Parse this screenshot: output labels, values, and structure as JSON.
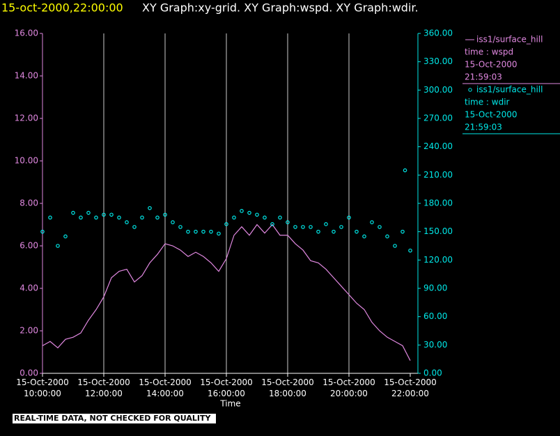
{
  "chart_data": {
    "type": "xy",
    "title": "15-oct-2000,22:00:00",
    "subtitle": "XY Graph:xy-grid.  XY Graph:wspd.  XY Graph:wdir.",
    "xlabel": "Time",
    "footer": "REAL-TIME DATA, NOT CHECKED FOR QUALITY",
    "grid": true,
    "xlim": [
      10,
      22
    ],
    "xticks": [
      {
        "value": 10,
        "label": "15-Oct-2000 10:00:00"
      },
      {
        "value": 12,
        "label": "15-Oct-2000 12:00:00"
      },
      {
        "value": 14,
        "label": "15-Oct-2000 14:00:00"
      },
      {
        "value": 16,
        "label": "15-Oct-2000 16:00:00"
      },
      {
        "value": 18,
        "label": "15-Oct-2000 18:00:00"
      },
      {
        "value": 20,
        "label": "15-Oct-2000 20:00:00"
      },
      {
        "value": 22,
        "label": "15-Oct-2000 22:00:00"
      }
    ],
    "ylim": [
      0,
      16
    ],
    "yticks": [
      {
        "value": 0,
        "label": "0.00"
      },
      {
        "value": 2,
        "label": "2.00"
      },
      {
        "value": 4,
        "label": "4.00"
      },
      {
        "value": 6,
        "label": "6.00"
      },
      {
        "value": 8,
        "label": "8.00"
      },
      {
        "value": 10,
        "label": "10.00"
      },
      {
        "value": 12,
        "label": "12.00"
      },
      {
        "value": 14,
        "label": "14.00"
      },
      {
        "value": 16,
        "label": "16.00"
      }
    ],
    "y2lim": [
      0,
      360
    ],
    "y2ticks": [
      {
        "value": 0,
        "label": "0.00"
      },
      {
        "value": 30,
        "label": "30.00"
      },
      {
        "value": 60,
        "label": "60.00"
      },
      {
        "value": 90,
        "label": "90.00"
      },
      {
        "value": 120,
        "label": "120.00"
      },
      {
        "value": 150,
        "label": "150.00"
      },
      {
        "value": 180,
        "label": "180.00"
      },
      {
        "value": 210,
        "label": "210.00"
      },
      {
        "value": 240,
        "label": "240.00"
      },
      {
        "value": 270,
        "label": "270.00"
      },
      {
        "value": 300,
        "label": "300.00"
      },
      {
        "value": 330,
        "label": "330.00"
      },
      {
        "value": 360,
        "label": "360.00"
      }
    ],
    "series": [
      {
        "name": "iss1/surface_hill",
        "legend_lines": [
          "time : wspd",
          "15-Oct-2000",
          "21:59:03"
        ],
        "color": "#e088e0",
        "kind": "line",
        "axis": "y",
        "x": [
          10,
          10.25,
          10.5,
          10.75,
          11,
          11.25,
          11.5,
          11.75,
          12,
          12.25,
          12.5,
          12.75,
          13,
          13.25,
          13.5,
          13.75,
          14,
          14.25,
          14.5,
          14.75,
          15,
          15.25,
          15.5,
          15.75,
          16,
          16.25,
          16.5,
          16.75,
          17,
          17.25,
          17.5,
          17.75,
          18,
          18.25,
          18.5,
          18.75,
          19,
          19.25,
          19.5,
          19.75,
          20,
          20.25,
          20.5,
          20.75,
          21,
          21.25,
          21.5,
          21.75,
          22
        ],
        "values": [
          1.3,
          1.5,
          1.2,
          1.6,
          1.7,
          1.9,
          2.5,
          3.0,
          3.6,
          4.5,
          4.8,
          4.9,
          4.3,
          4.6,
          5.2,
          5.6,
          6.1,
          6.0,
          5.8,
          5.5,
          5.7,
          5.5,
          5.2,
          4.8,
          5.4,
          6.5,
          6.9,
          6.5,
          7.0,
          6.6,
          7.0,
          6.5,
          6.5,
          6.1,
          5.8,
          5.3,
          5.2,
          4.9,
          4.5,
          4.1,
          3.7,
          3.3,
          3.0,
          2.4,
          2.0,
          1.7,
          1.5,
          1.3,
          0.6
        ]
      },
      {
        "name": "iss1/surface_hill",
        "legend_lines": [
          "time : wdir",
          "15-Oct-2000",
          "21:59:03"
        ],
        "color": "#00e8e8",
        "kind": "scatter",
        "axis": "y2",
        "x": [
          10,
          10.25,
          10.5,
          10.75,
          11,
          11.25,
          11.5,
          11.75,
          12,
          12.25,
          12.5,
          12.75,
          13,
          13.25,
          13.5,
          13.75,
          14,
          14.25,
          14.5,
          14.75,
          15,
          15.25,
          15.5,
          15.75,
          16,
          16.25,
          16.5,
          16.75,
          17,
          17.25,
          17.5,
          17.75,
          18,
          18.25,
          18.5,
          18.75,
          19,
          19.25,
          19.5,
          19.75,
          20,
          20.25,
          20.5,
          20.75,
          21,
          21.25,
          21.5,
          21.75,
          21.83,
          22
        ],
        "values": [
          150,
          165,
          135,
          145,
          170,
          165,
          170,
          165,
          168,
          168,
          165,
          160,
          155,
          165,
          175,
          165,
          168,
          160,
          155,
          150,
          150,
          150,
          150,
          148,
          158,
          165,
          172,
          170,
          168,
          165,
          158,
          165,
          160,
          155,
          155,
          155,
          150,
          158,
          150,
          155,
          165,
          150,
          145,
          160,
          155,
          145,
          135,
          150,
          215,
          130
        ]
      }
    ]
  }
}
